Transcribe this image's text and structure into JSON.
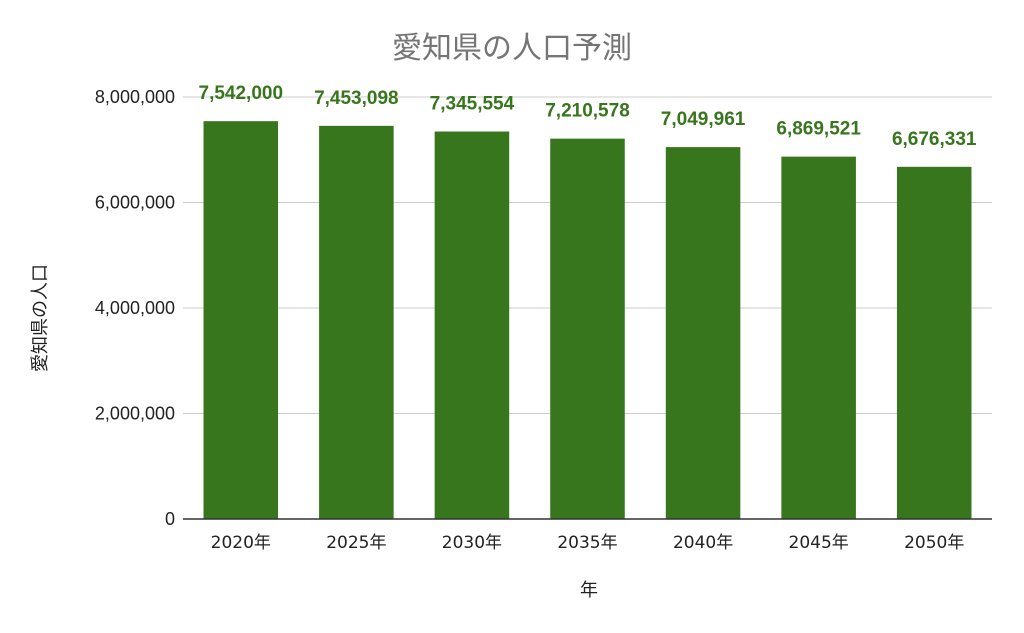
{
  "chart_data": {
    "type": "bar",
    "title": "愛知県の人口予測",
    "xlabel": "年",
    "ylabel": "愛知県の人口",
    "categories": [
      "2020年",
      "2025年",
      "2030年",
      "2035年",
      "2040年",
      "2045年",
      "2050年"
    ],
    "values": [
      7542000,
      7453098,
      7345554,
      7210578,
      7049961,
      6869521,
      6676331
    ],
    "data_labels": [
      "7,542,000",
      "7,453,098",
      "7,345,554",
      "7,210,578",
      "7,049,961",
      "6,869,521",
      "6,676,331"
    ],
    "ylim": [
      0,
      8000000
    ],
    "yticks": [
      0,
      2000000,
      4000000,
      6000000,
      8000000
    ],
    "ytick_labels": [
      "0",
      "2,000,000",
      "4,000,000",
      "6,000,000",
      "8,000,000"
    ],
    "grid": true,
    "legend": "none",
    "bar_color": "#38761d",
    "label_color": "#38761d"
  }
}
